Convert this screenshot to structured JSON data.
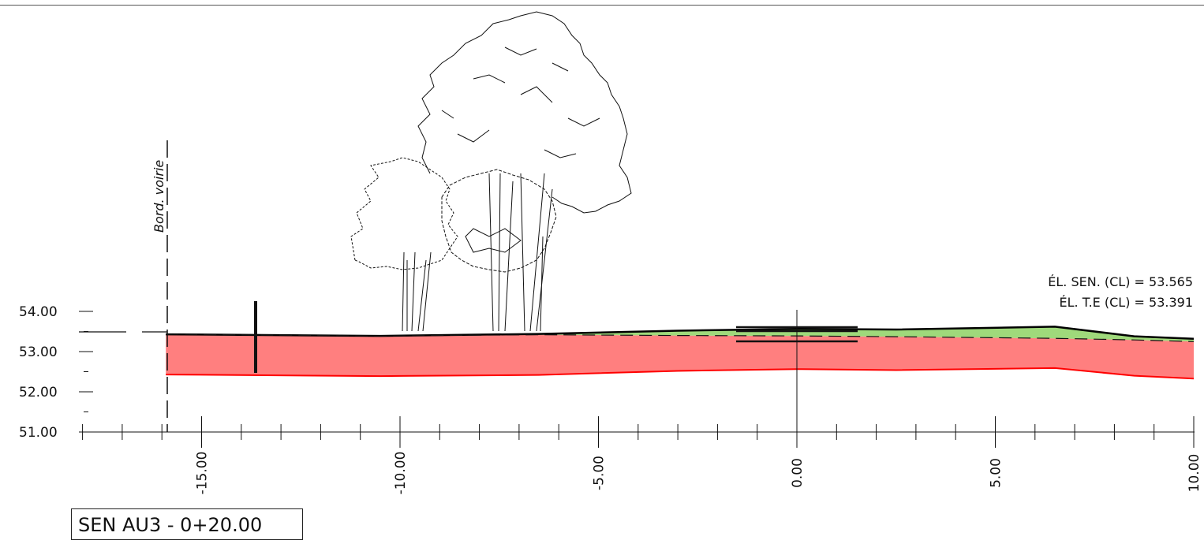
{
  "title": "SEN AU3 - 0+20.00",
  "road_edge_label": "Bord. voirie",
  "annotations": {
    "el_sen": "ÉL. SEN. (CL) = 53.565",
    "el_te": "ÉL. T.E (CL) = 53.391"
  },
  "colors": {
    "cut": "#ff7f7f",
    "fill": "#9fd97b",
    "bottom_line": "#ff0000",
    "ground_line": "#000000"
  },
  "chart_data": {
    "type": "area",
    "title": "SEN AU3 - 0+20.00",
    "x_ticks": [
      "-15.00",
      "-10.00",
      "-5.00",
      "0.00",
      "5.00",
      "10.00"
    ],
    "y_ticks": [
      "51.00",
      "52.00",
      "53.00",
      "54.00"
    ],
    "xlim": [
      -18.2,
      10.0
    ],
    "ylim": [
      51.0,
      54.2
    ],
    "series": [
      {
        "x": [
          -15.9,
          -10.5,
          -6.5,
          -3.0,
          0.0,
          2.5,
          6.5,
          8.5,
          10.0
        ],
        "y": [
          53.43,
          53.39,
          53.44,
          53.52,
          53.565,
          53.55,
          53.62,
          53.38,
          53.32
        ]
      },
      {
        "x": [
          -15.9,
          -10.5,
          -6.5,
          -3.0,
          0.0,
          2.5,
          6.5,
          8.5,
          10.0
        ],
        "y": [
          53.43,
          53.39,
          53.42,
          53.4,
          53.391,
          53.37,
          53.33,
          53.29,
          53.25
        ]
      },
      {
        "x": [
          -15.9,
          -10.5,
          -6.5,
          -3.0,
          0.0,
          2.5,
          6.5,
          8.5,
          10.0
        ],
        "y": [
          52.43,
          52.39,
          52.42,
          52.52,
          52.565,
          52.54,
          52.59,
          52.4,
          52.33
        ]
      }
    ],
    "grid": false
  }
}
